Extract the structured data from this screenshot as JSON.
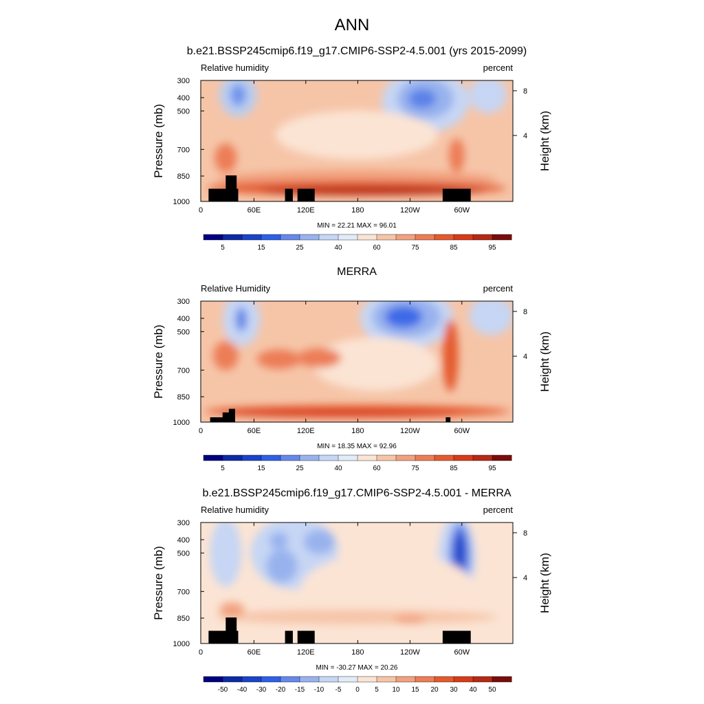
{
  "figure": {
    "title": "ANN"
  },
  "chart_data": [
    {
      "type": "heatmap",
      "title": "b.e21.BSSP245cmip6.f19_g17.CMIP6-SSP2-4.5.001 (yrs 2015-2099)",
      "left_label": "Relative humidity",
      "right_label": "percent",
      "ylabel": "Pressure (mb)",
      "ylabel_right": "Height (km)",
      "yticks": [
        "300",
        "400",
        "500",
        "700",
        "850",
        "1000"
      ],
      "yticks_right": [
        "8",
        "4"
      ],
      "xticks": [
        "0",
        "60E",
        "120E",
        "180",
        "120W",
        "60W"
      ],
      "stats": "MIN = 22.21 MAX = 96.01",
      "colorbar_labels": [
        "5",
        "15",
        "25",
        "40",
        "60",
        "75",
        "85",
        "95"
      ],
      "colorbar_colors": [
        "#000080",
        "#0d2aa5",
        "#1a44c8",
        "#2f5fe6",
        "#6688ea",
        "#98b2ee",
        "#c6d6f4",
        "#e2ebf8",
        "#fbe4d4",
        "#f6c5a8",
        "#f1a17e",
        "#ec7d56",
        "#e45a2f",
        "#d73b1a",
        "#b52a16",
        "#7a0c0c"
      ],
      "min": 22.21,
      "max": 96.01
    },
    {
      "type": "heatmap",
      "title": "MERRA",
      "left_label": "Relative Humidity",
      "right_label": "percent",
      "ylabel": "Pressure (mb)",
      "ylabel_right": "Height (km)",
      "yticks": [
        "300",
        "400",
        "500",
        "700",
        "850",
        "1000"
      ],
      "yticks_right": [
        "8",
        "4"
      ],
      "xticks": [
        "0",
        "60E",
        "120E",
        "180",
        "120W",
        "60W"
      ],
      "stats": "MIN = 18.35 MAX = 92.96",
      "colorbar_labels": [
        "5",
        "15",
        "25",
        "40",
        "60",
        "75",
        "85",
        "95"
      ],
      "colorbar_colors": [
        "#000080",
        "#0d2aa5",
        "#1a44c8",
        "#2f5fe6",
        "#6688ea",
        "#98b2ee",
        "#c6d6f4",
        "#e2ebf8",
        "#fbe4d4",
        "#f6c5a8",
        "#f1a17e",
        "#ec7d56",
        "#e45a2f",
        "#d73b1a",
        "#b52a16",
        "#7a0c0c"
      ],
      "min": 18.35,
      "max": 92.96
    },
    {
      "type": "heatmap",
      "title": "b.e21.BSSP245cmip6.f19_g17.CMIP6-SSP2-4.5.001 - MERRA",
      "left_label": "Relative humidity",
      "right_label": "percent",
      "ylabel": "Pressure (mb)",
      "ylabel_right": "Height (km)",
      "yticks": [
        "300",
        "400",
        "500",
        "700",
        "850",
        "1000"
      ],
      "yticks_right": [
        "8",
        "4"
      ],
      "xticks": [
        "0",
        "60E",
        "120E",
        "180",
        "120W",
        "60W"
      ],
      "stats": "MIN = -30.27 MAX = 20.26",
      "colorbar_labels": [
        "-50",
        "-40",
        "-30",
        "-20",
        "-15",
        "-10",
        "-5",
        "0",
        "5",
        "10",
        "15",
        "20",
        "30",
        "40",
        "50"
      ],
      "colorbar_colors": [
        "#000080",
        "#0d2aa5",
        "#1a44c8",
        "#2f5fe6",
        "#6688ea",
        "#98b2ee",
        "#c6d6f4",
        "#e2ebf8",
        "#fbe4d4",
        "#f6c5a8",
        "#f1a17e",
        "#ec7d56",
        "#e45a2f",
        "#d73b1a",
        "#b52a16",
        "#7a0c0c"
      ],
      "min": -30.27,
      "max": 20.26
    }
  ]
}
